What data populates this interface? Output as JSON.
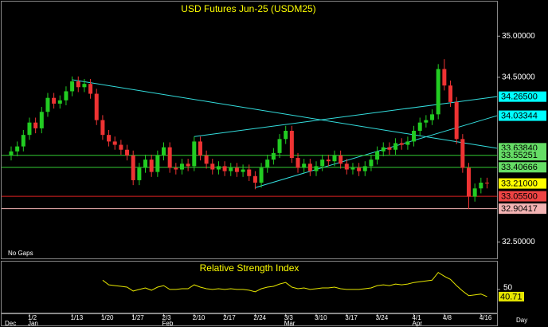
{
  "chart_data": {
    "type": "candlestick",
    "title": "USD Futures Jun-25 (USDM25)",
    "note": "No Gaps",
    "x_label": "Day",
    "up_color": "#22cc22",
    "down_color": "#ee3333",
    "categories": [
      null,
      null,
      null,
      "1/2",
      null,
      null,
      null,
      null,
      null,
      null,
      "1/13",
      null,
      null,
      null,
      null,
      "1/20",
      null,
      null,
      null,
      null,
      "1/27",
      null,
      null,
      null,
      null,
      "2/3",
      null,
      null,
      null,
      null,
      "2/10",
      null,
      null,
      null,
      null,
      "2/17",
      null,
      null,
      null,
      null,
      "2/24",
      null,
      null,
      null,
      null,
      "3/3",
      null,
      null,
      null,
      null,
      "3/10",
      null,
      null,
      null,
      null,
      "3/17",
      null,
      null,
      null,
      null,
      "3/24",
      null,
      null,
      null,
      null,
      null,
      "4/1",
      null,
      null,
      null,
      null,
      "4/8",
      null,
      null,
      null,
      null,
      null,
      "4/16",
      null
    ],
    "months": [
      "Dec",
      null,
      null,
      "Jan",
      null,
      null,
      null,
      null,
      null,
      null,
      null,
      null,
      null,
      null,
      null,
      null,
      null,
      null,
      null,
      null,
      null,
      null,
      null,
      null,
      null,
      "Feb",
      null,
      null,
      null,
      null,
      null,
      null,
      null,
      null,
      null,
      null,
      null,
      null,
      null,
      null,
      null,
      null,
      null,
      null,
      null,
      "Mar",
      null,
      null,
      null,
      null,
      null,
      null,
      null,
      null,
      null,
      null,
      null,
      null,
      null,
      null,
      null,
      null,
      null,
      null,
      null,
      null,
      "Apr",
      null,
      null,
      null,
      null,
      null,
      null,
      null,
      null,
      null,
      null,
      null,
      null
    ],
    "open": [
      33.55,
      33.6,
      33.66,
      33.8,
      33.95,
      33.88,
      34.08,
      34.25,
      34.18,
      34.22,
      34.33,
      34.45,
      34.38,
      34.42,
      34.3,
      33.98,
      33.8,
      33.72,
      33.68,
      33.62,
      33.55,
      33.25,
      33.4,
      33.5,
      33.35,
      33.55,
      33.65,
      33.4,
      33.38,
      33.45,
      33.42,
      33.72,
      33.55,
      33.45,
      33.38,
      33.42,
      33.36,
      33.4,
      33.35,
      33.38,
      33.3,
      33.22,
      33.4,
      33.5,
      33.58,
      33.75,
      33.85,
      33.52,
      33.4,
      33.45,
      33.36,
      33.42,
      33.5,
      33.48,
      33.55,
      33.45,
      33.38,
      33.4,
      33.36,
      33.42,
      33.5,
      33.6,
      33.65,
      33.62,
      33.7,
      33.68,
      33.72,
      33.85,
      33.95,
      33.98,
      34.05,
      34.6,
      34.4,
      34.2,
      33.75,
      33.4,
      33.05,
      33.15,
      33.22
    ],
    "high": [
      33.66,
      33.72,
      33.86,
      34.01,
      34.01,
      34.14,
      34.31,
      34.31,
      34.28,
      34.39,
      34.51,
      34.51,
      34.48,
      34.48,
      34.36,
      34.04,
      33.86,
      33.78,
      33.74,
      33.68,
      33.61,
      33.46,
      33.56,
      33.56,
      33.61,
      33.71,
      33.71,
      33.46,
      33.51,
      33.51,
      33.78,
      33.78,
      33.61,
      33.51,
      33.48,
      33.48,
      33.46,
      33.46,
      33.44,
      33.44,
      33.36,
      33.46,
      33.56,
      33.64,
      33.81,
      33.91,
      33.91,
      33.58,
      33.51,
      33.51,
      33.48,
      33.56,
      33.56,
      33.61,
      33.61,
      33.51,
      33.46,
      33.46,
      33.48,
      33.56,
      33.66,
      33.71,
      33.71,
      33.76,
      33.76,
      33.78,
      33.91,
      34.01,
      34.04,
      34.11,
      34.66,
      34.72,
      34.46,
      34.26,
      33.81,
      33.46,
      33.21,
      33.28,
      33.28
    ],
    "low": [
      33.49,
      33.54,
      33.6,
      33.74,
      33.82,
      33.82,
      34.02,
      34.12,
      34.12,
      34.16,
      34.27,
      34.32,
      34.32,
      34.24,
      33.92,
      33.74,
      33.66,
      33.62,
      33.56,
      33.49,
      33.19,
      33.19,
      33.34,
      33.29,
      33.29,
      33.49,
      33.34,
      33.32,
      33.32,
      33.36,
      33.36,
      33.49,
      33.39,
      33.32,
      33.32,
      33.3,
      33.3,
      33.29,
      33.29,
      33.24,
      33.14,
      33.16,
      33.34,
      33.44,
      33.52,
      33.69,
      33.46,
      33.34,
      33.34,
      33.3,
      33.3,
      33.36,
      33.42,
      33.42,
      33.39,
      33.32,
      33.32,
      33.3,
      33.3,
      33.36,
      33.44,
      33.54,
      33.56,
      33.56,
      33.62,
      33.62,
      33.66,
      33.79,
      33.89,
      33.92,
      33.99,
      34.34,
      34.14,
      33.69,
      33.34,
      32.9,
      32.99,
      33.09,
      33.15
    ],
    "close": [
      33.6,
      33.66,
      33.8,
      33.95,
      33.88,
      34.08,
      34.25,
      34.18,
      34.22,
      34.33,
      34.45,
      34.38,
      34.42,
      34.3,
      33.98,
      33.8,
      33.72,
      33.68,
      33.62,
      33.55,
      33.25,
      33.4,
      33.5,
      33.35,
      33.55,
      33.65,
      33.4,
      33.38,
      33.45,
      33.42,
      33.72,
      33.55,
      33.45,
      33.38,
      33.42,
      33.36,
      33.4,
      33.35,
      33.38,
      33.3,
      33.22,
      33.4,
      33.5,
      33.58,
      33.75,
      33.85,
      33.52,
      33.4,
      33.45,
      33.36,
      33.42,
      33.5,
      33.48,
      33.55,
      33.45,
      33.38,
      33.4,
      33.36,
      33.42,
      33.5,
      33.6,
      33.65,
      33.62,
      33.7,
      33.68,
      33.72,
      33.85,
      33.95,
      33.98,
      34.05,
      34.6,
      34.4,
      34.2,
      33.75,
      33.4,
      33.05,
      33.15,
      33.22,
      33.21
    ],
    "ylim": [
      32.3,
      35.4
    ],
    "yticks": [
      {
        "value": 35,
        "label": "35.00000"
      },
      {
        "value": 34.5,
        "label": "34.50000"
      },
      {
        "value": 32.5,
        "label": "32.50000"
      }
    ],
    "price_labels": [
      {
        "value": 34.265,
        "label": "34.26500",
        "color": "#00ffff",
        "line": "trend",
        "line_color": "#33dddd",
        "from_index": 30,
        "from_value": 33.78
      },
      {
        "value": 34.03344,
        "label": "34.03344",
        "color": "#00ffff",
        "line": "trend",
        "line_color": "#33dddd",
        "from_index": 40,
        "from_value": 33.16
      },
      {
        "value": 33.6384,
        "label": "33.63840",
        "color": "#66dd66",
        "line": "trend",
        "line_color": "#33dddd",
        "from_index": 10,
        "from_value": 34.47
      },
      {
        "value": 33.55251,
        "label": "33.55251",
        "color": "#66dd66",
        "line": "horizontal",
        "line_color": "#33cc33"
      },
      {
        "value": 33.40666,
        "label": "33.40666",
        "color": "#66dd66",
        "line": "horizontal",
        "line_color": "#33cc33"
      },
      {
        "value": 33.21,
        "label": "33.21000",
        "color": "#ffff00",
        "line": "none"
      },
      {
        "value": 33.055,
        "label": "33.05500",
        "color": "#ee4444",
        "line": "horizontal",
        "line_color": "#dd2222"
      },
      {
        "value": 32.90417,
        "label": "32.90417",
        "color": "#f4b4b4",
        "line": "horizontal",
        "line_color": "#f4b4b4"
      }
    ],
    "rsi": {
      "title": "Relative Strength Index",
      "color": "#e6e600",
      "ylim": [
        20,
        85
      ],
      "yticks": [
        50
      ],
      "values": [
        null,
        null,
        null,
        null,
        null,
        null,
        null,
        null,
        null,
        null,
        null,
        null,
        null,
        null,
        null,
        62,
        56,
        55,
        54,
        53,
        48,
        50,
        52,
        49,
        53,
        55,
        50,
        50,
        51,
        51,
        56,
        53,
        51,
        50,
        51,
        50,
        51,
        50,
        50,
        49,
        47,
        51,
        53,
        54,
        57,
        59,
        53,
        51,
        52,
        50,
        51,
        52,
        52,
        53,
        51,
        50,
        50,
        50,
        51,
        52,
        55,
        56,
        55,
        57,
        56,
        57,
        59,
        60,
        61,
        62,
        72,
        67,
        63,
        55,
        48,
        42,
        43,
        44,
        40.71
      ]
    }
  }
}
